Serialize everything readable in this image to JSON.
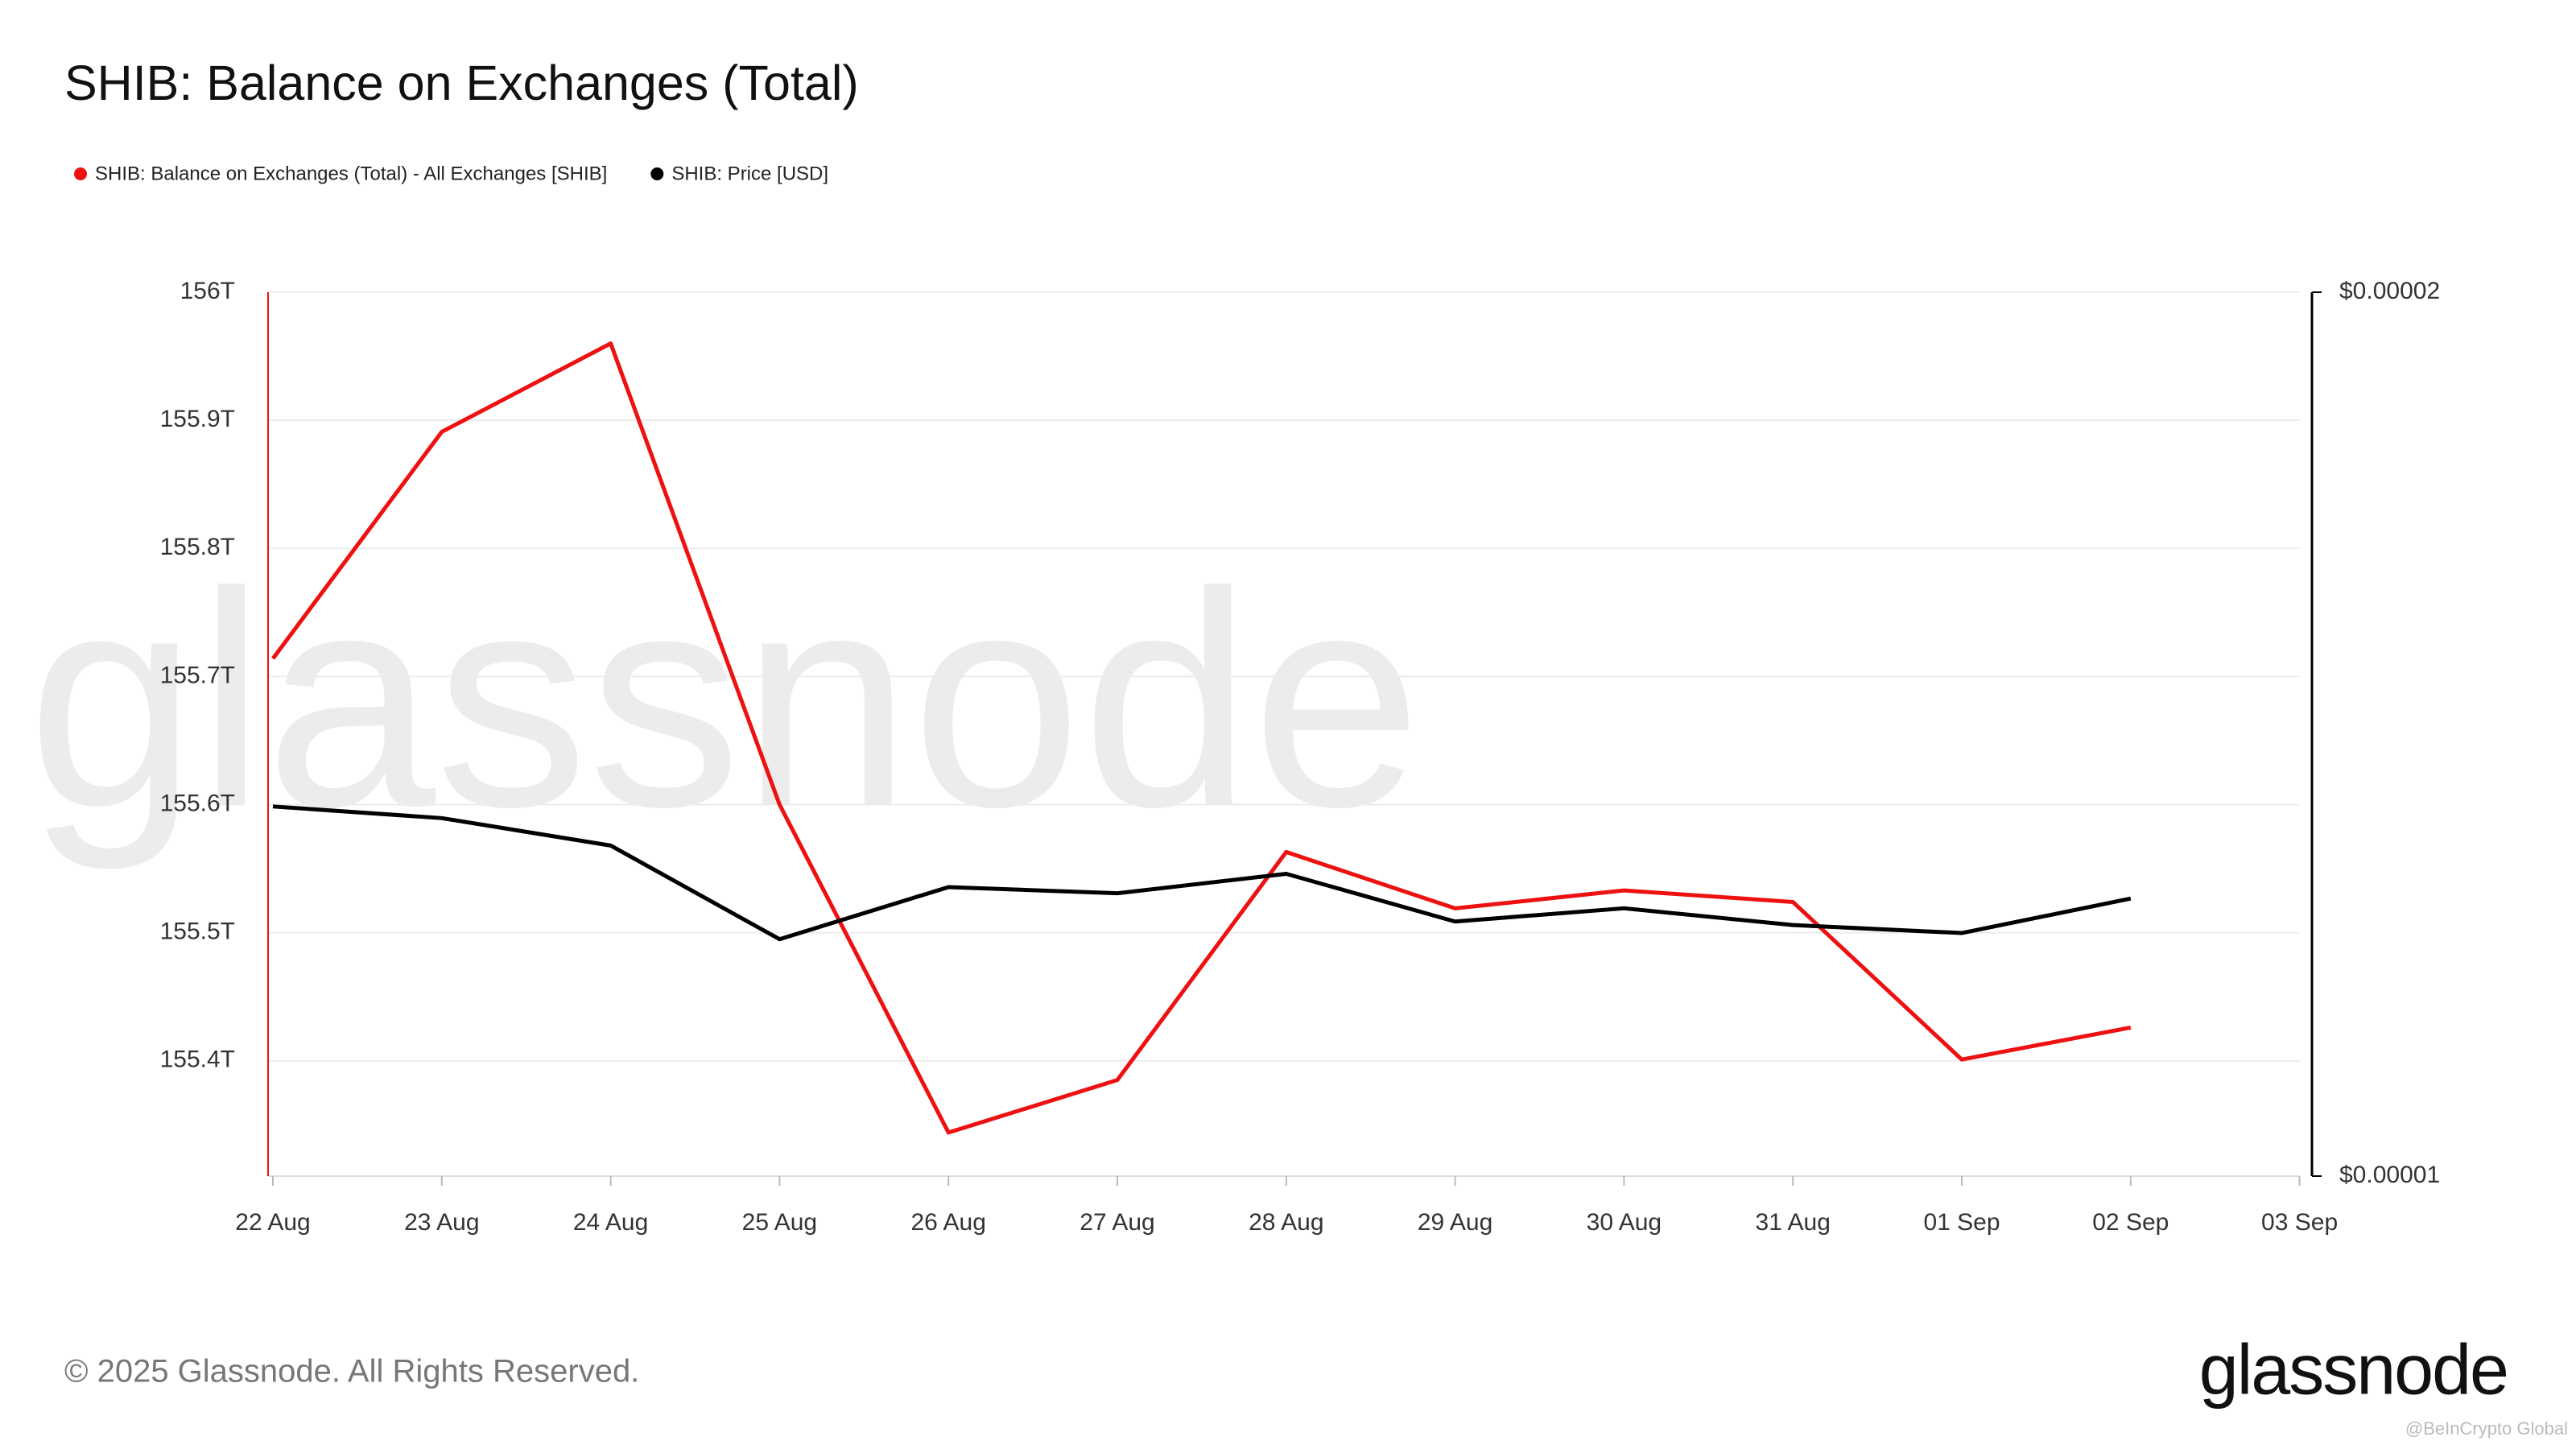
{
  "chart_data": {
    "type": "line",
    "title": "SHIB: Balance on Exchanges (Total)",
    "watermark": "glassnode",
    "footer": "© 2025 Glassnode. All Rights Reserved.",
    "logo": "glassnode",
    "credit": "@BeInCrypto Global",
    "categories": [
      "22 Aug",
      "23 Aug",
      "24 Aug",
      "25 Aug",
      "26 Aug",
      "27 Aug",
      "28 Aug",
      "29 Aug",
      "30 Aug",
      "31 Aug",
      "01 Sep",
      "02 Sep",
      "03 Sep"
    ],
    "series": [
      {
        "name": "SHIB: Balance on Exchanges (Total) - All Exchanges [SHIB]",
        "color": "#ee1111",
        "axis": "y",
        "values": [
          155.714,
          155.891,
          155.96,
          155.6,
          155.344,
          155.385,
          155.563,
          155.519,
          155.533,
          155.524,
          155.401,
          155.426,
          null
        ]
      },
      {
        "name": "SHIB: Price [USD]",
        "color": "#000000",
        "axis": "y2",
        "values": [
          1.4182e-05,
          1.405e-05,
          1.374e-05,
          1.268e-05,
          1.327e-05,
          1.32e-05,
          1.342e-05,
          1.288e-05,
          1.303e-05,
          1.284e-05,
          1.275e-05,
          1.314e-05,
          null
        ]
      }
    ],
    "ylim": [
      155.31,
      156
    ],
    "yticks": [
      {
        "value": 155.4,
        "label": "155.4T"
      },
      {
        "value": 155.5,
        "label": "155.5T"
      },
      {
        "value": 155.6,
        "label": "155.6T"
      },
      {
        "value": 155.7,
        "label": "155.7T"
      },
      {
        "value": 155.8,
        "label": "155.8T"
      },
      {
        "value": 155.9,
        "label": "155.9T"
      },
      {
        "value": 156,
        "label": "156T"
      }
    ],
    "y2lim": [
      1e-05,
      2e-05
    ],
    "y2ticks": [
      {
        "value": 1e-05,
        "label": "$0.00001"
      },
      {
        "value": 2e-05,
        "label": "$0.00002"
      }
    ],
    "grid": true
  }
}
